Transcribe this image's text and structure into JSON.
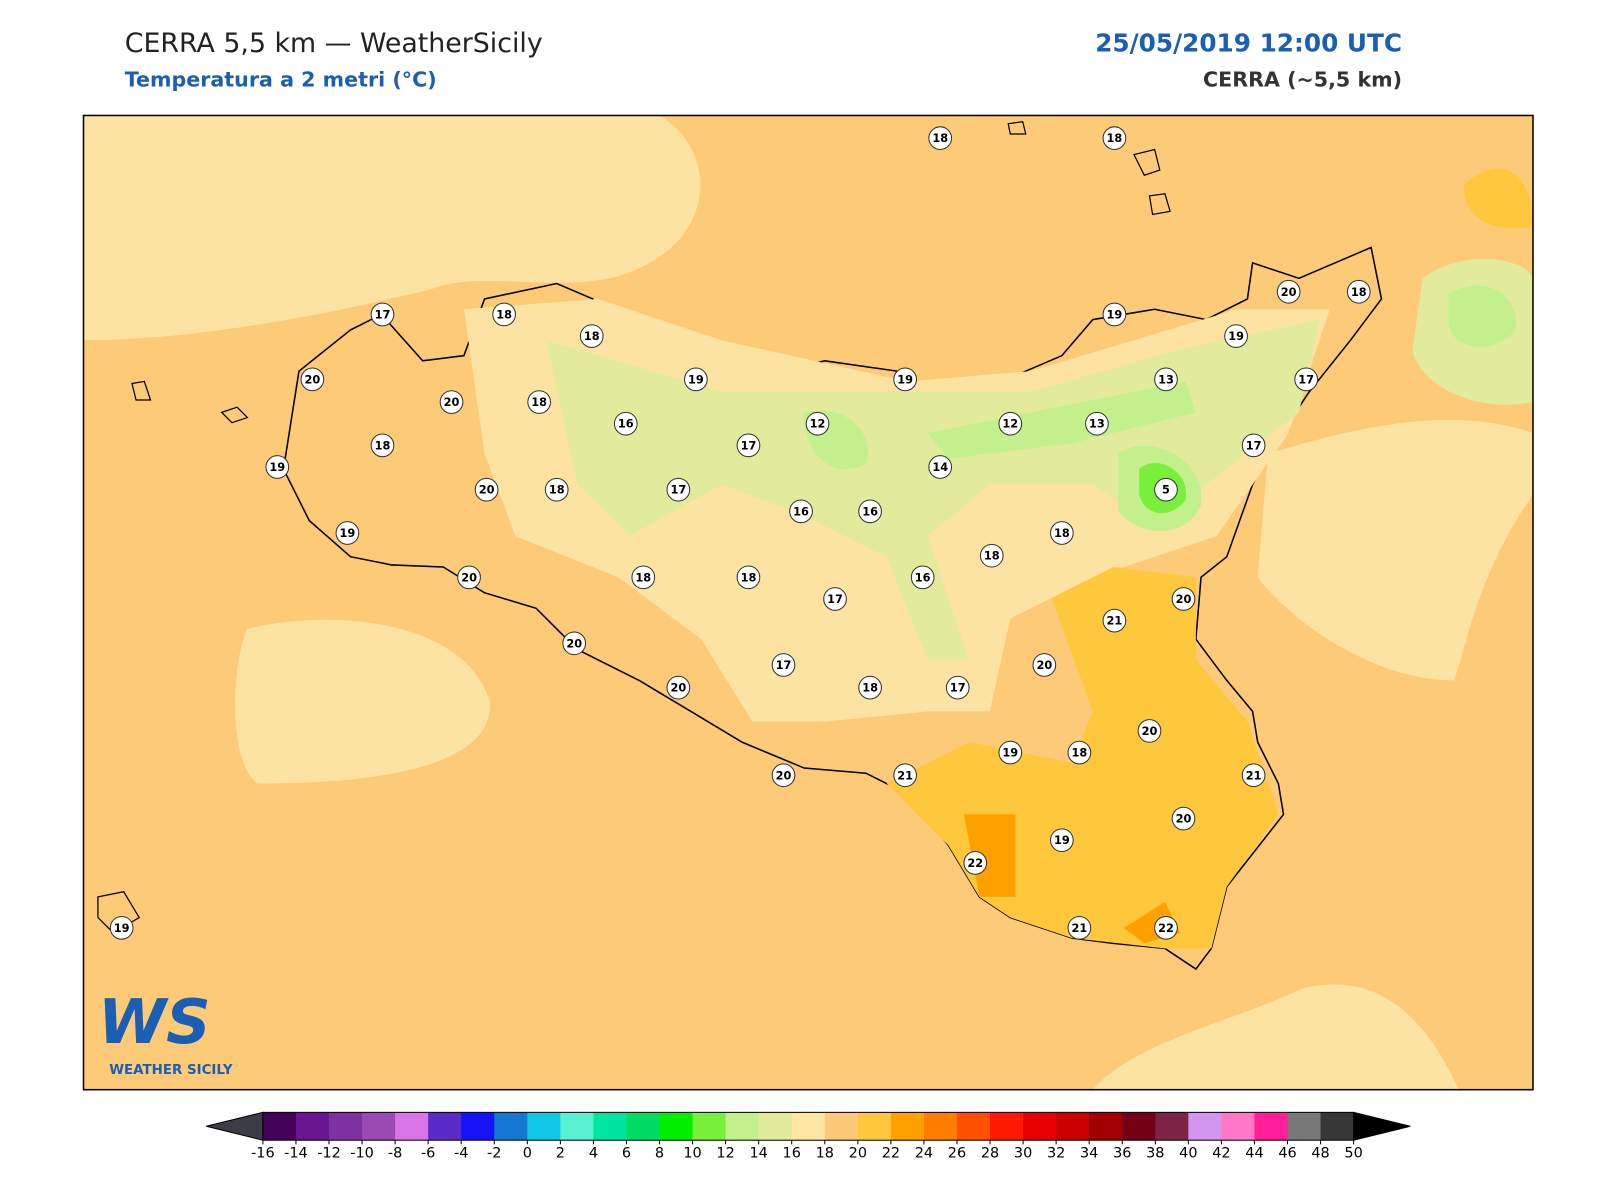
{
  "header": {
    "title": "CERRA 5,5 km — WeatherSicily",
    "subtitle": "Temperatura a 2 metri (°C)",
    "date": "25/05/2019 12:00 UTC",
    "model": "CERRA (~5,5 km)"
  },
  "stations": [
    18,
    18,
    17,
    18,
    18,
    20,
    19,
    19,
    19,
    20,
    18,
    19,
    13,
    17,
    20,
    18,
    16,
    12,
    12,
    13,
    18,
    17,
    19,
    14,
    17,
    20,
    18,
    17,
    5,
    16,
    16,
    19,
    18,
    18,
    20,
    18,
    18,
    16,
    17,
    20,
    21,
    20,
    20,
    17,
    20,
    18,
    17,
    20,
    19,
    18,
    20,
    21,
    21,
    20,
    22,
    19,
    21,
    22,
    19
  ],
  "logo": {
    "mark": "WS",
    "name": "WEATHER SICILY"
  },
  "colorbar": {
    "ticks": [
      -16,
      -14,
      -12,
      -10,
      -8,
      -6,
      -4,
      -2,
      0,
      2,
      4,
      6,
      8,
      10,
      12,
      14,
      16,
      18,
      20,
      22,
      24,
      26,
      28,
      30,
      32,
      34,
      36,
      38,
      40,
      42,
      44,
      46,
      48,
      50
    ],
    "colors": [
      "#45005a",
      "#6a1591",
      "#7e31a0",
      "#9b4ab4",
      "#d874e6",
      "#5a2bc8",
      "#1414f5",
      "#1477d2",
      "#0ec8e6",
      "#5af0d2",
      "#00e6a0",
      "#00dc64",
      "#00f000",
      "#78f03c",
      "#c3f08c",
      "#e1eb9b",
      "#ffe6a5",
      "#fdc878",
      "#ffc83c",
      "#ffa000",
      "#ff7d00",
      "#ff5000",
      "#ff1900",
      "#e60000",
      "#c80000",
      "#a00000",
      "#730014",
      "#7d2346",
      "#d296f0",
      "#ff78c8",
      "#ff1e96",
      "#787878",
      "#373737"
    ],
    "under_color": "#3c3c46",
    "over_color": "#000000"
  }
}
